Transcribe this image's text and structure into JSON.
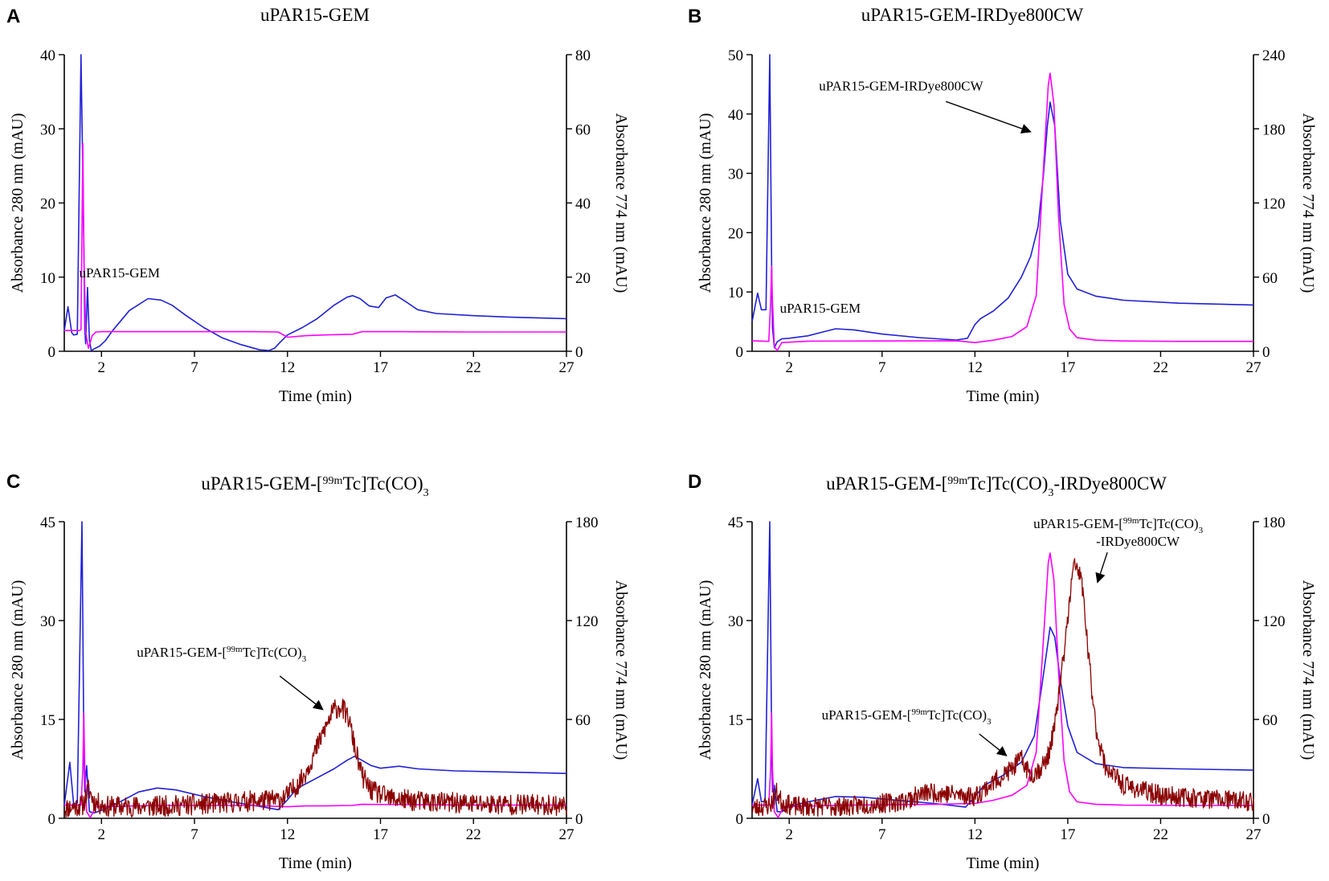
{
  "chart_data": [
    {
      "id": "A",
      "type": "line",
      "panel_letter": "A",
      "title": "uPAR15-GEM",
      "xlabel": "Time (min)",
      "ylabel": "Absorbance 280 nm (mAU)",
      "y2label": "Absorbance 774 nm (mAU)",
      "xlim": [
        0,
        27
      ],
      "xticks": [
        2,
        7,
        12,
        17,
        22,
        27
      ],
      "ylim": [
        0,
        40
      ],
      "yticks": [
        0,
        10,
        20,
        30,
        40
      ],
      "y2lim": [
        0,
        80
      ],
      "y2ticks": [
        0,
        20,
        40,
        60,
        80
      ],
      "series": [
        {
          "name": "280 nm",
          "axis": "left",
          "color": "#2020d8",
          "x": [
            0,
            0.2,
            0.4,
            0.5,
            0.7,
            0.9,
            1.05,
            1.1,
            1.15,
            1.25,
            1.35,
            1.45,
            1.6,
            1.9,
            2.2,
            2.6,
            3.5,
            4.5,
            5.2,
            5.8,
            6.5,
            7.5,
            8.5,
            9.5,
            10.5,
            11.0,
            11.3,
            11.6,
            12.0,
            12.8,
            13.6,
            14.5,
            15.2,
            15.5,
            15.9,
            16.4,
            16.9,
            17.3,
            17.8,
            18.3,
            19,
            20,
            22,
            24,
            27
          ],
          "y": [
            2.8,
            6,
            2.5,
            2.2,
            2.3,
            40,
            15,
            3,
            1,
            8.6,
            1.5,
            0.1,
            0.3,
            0.7,
            1.4,
            2.8,
            5.5,
            7.1,
            6.9,
            6.2,
            4.9,
            3.2,
            1.8,
            0.9,
            0.2,
            0.1,
            0.4,
            1.2,
            2.2,
            3.2,
            4.4,
            6.2,
            7.3,
            7.5,
            7.1,
            6.1,
            5.9,
            7.2,
            7.6,
            6.8,
            5.6,
            5.1,
            4.8,
            4.6,
            4.4
          ]
        },
        {
          "name": "774 nm",
          "axis": "right",
          "color": "#ff00ff",
          "x": [
            0,
            0.8,
            0.9,
            1.0,
            1.05,
            1.15,
            1.3,
            1.5,
            1.7,
            2,
            5,
            8,
            10,
            11.5,
            12,
            13,
            14,
            15.5,
            16,
            18,
            22,
            27
          ],
          "y": [
            5.6,
            5.6,
            5.8,
            56,
            28,
            5,
            0.8,
            4.2,
            5.2,
            5.3,
            5.3,
            5.3,
            5.3,
            5.2,
            3.8,
            4.2,
            4.4,
            4.6,
            5.3,
            5.3,
            5.2,
            5.2
          ]
        }
      ],
      "annotations": [
        {
          "text": "uPAR15-GEM",
          "x": 0.8,
          "y": 10,
          "arrow": false
        }
      ]
    },
    {
      "id": "B",
      "type": "line",
      "panel_letter": "B",
      "title": "uPAR15-GEM-IRDye800CW",
      "xlabel": "Time (min)",
      "ylabel": "Absorbance 280 nm (mAU)",
      "y2label": "Absorbance 774 nm (mAU)",
      "xlim": [
        0,
        27
      ],
      "xticks": [
        2,
        7,
        12,
        17,
        22,
        27
      ],
      "ylim": [
        0,
        50
      ],
      "yticks": [
        0,
        10,
        20,
        30,
        40,
        50
      ],
      "y2lim": [
        0,
        240
      ],
      "y2ticks": [
        0,
        60,
        120,
        180,
        240
      ],
      "series": [
        {
          "name": "280 nm",
          "axis": "left",
          "color": "#2020d8",
          "x": [
            0,
            0.3,
            0.5,
            0.75,
            0.95,
            1.05,
            1.1,
            1.2,
            1.35,
            1.6,
            2,
            3,
            4.5,
            5.5,
            7,
            9,
            11,
            11.6,
            12,
            12.3,
            13,
            13.8,
            14.5,
            15,
            15.4,
            15.7,
            15.9,
            16.05,
            16.3,
            16.6,
            17.0,
            17.5,
            18.5,
            20,
            23,
            27
          ],
          "y": [
            5,
            9.8,
            7,
            7,
            50,
            15,
            4,
            0.6,
            1.6,
            2.1,
            2.2,
            2.6,
            3.8,
            3.6,
            2.9,
            2.3,
            1.9,
            2.2,
            4.5,
            5.5,
            6.8,
            9,
            12.5,
            16,
            21,
            30,
            38,
            42,
            38,
            22,
            13,
            10.5,
            9.3,
            8.6,
            8.1,
            7.8
          ]
        },
        {
          "name": "774 nm",
          "axis": "right",
          "color": "#ff00ff",
          "x": [
            0,
            0.9,
            1.0,
            1.05,
            1.1,
            1.2,
            1.35,
            1.6,
            3,
            7,
            11,
            12,
            13,
            14,
            14.8,
            15.3,
            15.7,
            15.95,
            16.05,
            16.25,
            16.5,
            16.8,
            17.1,
            17.5,
            18.5,
            20,
            23,
            27
          ],
          "y": [
            8.5,
            8,
            40,
            69,
            40,
            4,
            0.5,
            7,
            8.2,
            8.3,
            8.5,
            7,
            9,
            12,
            20,
            45,
            150,
            215,
            225,
            200,
            110,
            38,
            18,
            11,
            9,
            8.3,
            8,
            8
          ]
        }
      ],
      "annotations": [
        {
          "text": "uPAR15-GEM-IRDye800CW",
          "x": 3.6,
          "y": 44,
          "arrow": true,
          "arrow_to": [
            15.0,
            37
          ]
        },
        {
          "text": "uPAR15-GEM",
          "x": 1.5,
          "y": 6.5,
          "arrow": false
        }
      ]
    },
    {
      "id": "C",
      "type": "line",
      "panel_letter": "C",
      "title_parts": [
        "uPAR15-GEM-[",
        "99m",
        "Tc]Tc(CO)",
        "3"
      ],
      "xlabel": "Time (min)",
      "ylabel": "Absorbance 280 nm (mAU)",
      "y2label": "Absorbance 774 nm (mAU)",
      "xlim": [
        0,
        27
      ],
      "xticks": [
        2,
        7,
        12,
        17,
        22,
        27
      ],
      "ylim": [
        0,
        45
      ],
      "yticks": [
        0,
        15,
        30,
        45
      ],
      "y2lim": [
        0,
        180
      ],
      "y2ticks": [
        0,
        60,
        120,
        180
      ],
      "series": [
        {
          "name": "280 nm",
          "axis": "left",
          "color": "#2020d8",
          "x": [
            0,
            0.3,
            0.5,
            0.7,
            0.95,
            1.05,
            1.1,
            1.2,
            1.35,
            1.6,
            2,
            3,
            4,
            5,
            6,
            7.5,
            9,
            10.5,
            11.5,
            12,
            12.5,
            13.5,
            14.5,
            15.2,
            15.6,
            16,
            16.5,
            17,
            18,
            19,
            21,
            24,
            27
          ],
          "y": [
            2,
            8.5,
            2.2,
            2.3,
            45,
            12,
            4,
            8,
            1,
            0.8,
            1.2,
            2.5,
            4,
            4.6,
            4.3,
            3.3,
            2.5,
            1.8,
            1.3,
            2.8,
            4.5,
            6,
            7.5,
            8.8,
            9.4,
            8.8,
            8,
            7.6,
            7.9,
            7.5,
            7.2,
            7,
            6.8
          ]
        },
        {
          "name": "774 nm",
          "axis": "right",
          "color": "#ff00ff",
          "x": [
            0,
            0.9,
            1.0,
            1.05,
            1.1,
            1.2,
            1.4,
            1.7,
            5,
            10,
            12,
            13,
            14,
            15.5,
            16,
            18,
            22,
            27
          ],
          "y": [
            8,
            8,
            30,
            64,
            30,
            4,
            0.5,
            7,
            7.8,
            7.8,
            7,
            7.5,
            7.5,
            7.8,
            8.5,
            8.3,
            8,
            8
          ]
        },
        {
          "name": "radio",
          "axis": "left",
          "color": "#8b0000",
          "noisy": true,
          "noise": 1.6,
          "seed": 11,
          "x": [
            0,
            1.0,
            1.3,
            1.6,
            2.2,
            5,
            8,
            10,
            11.5,
            12,
            12.8,
            13.4,
            14.0,
            14.5,
            14.9,
            15.3,
            15.6,
            16.0,
            16.5,
            17.5,
            19,
            22,
            27
          ],
          "y": [
            1.5,
            2,
            4.5,
            2.5,
            1.8,
            1.8,
            2.2,
            2.6,
            2.8,
            3.5,
            6,
            9.5,
            13.5,
            16.5,
            17,
            15,
            11,
            6.5,
            4.2,
            3,
            2.6,
            2.2,
            2
          ]
        }
      ],
      "annotations": [
        {
          "text_parts": [
            "uPAR15-GEM-[",
            "99m",
            "Tc]Tc(CO)",
            "3"
          ],
          "x": 3.9,
          "y": 24.5,
          "arrow": true,
          "arrow_to": [
            13.9,
            16.5
          ]
        }
      ]
    },
    {
      "id": "D",
      "type": "line",
      "panel_letter": "D",
      "title_parts": [
        "uPAR15-GEM-[",
        "99m",
        "Tc]Tc(CO)",
        "3",
        "-IRDye800CW"
      ],
      "xlabel": "Time (min)",
      "ylabel": "Absorbance 280 nm (mAU)",
      "y2label": "Absorbance 774 nm (mAU)",
      "xlim": [
        0,
        27
      ],
      "xticks": [
        2,
        7,
        12,
        17,
        22,
        27
      ],
      "ylim": [
        0,
        45
      ],
      "yticks": [
        0,
        15,
        30,
        45
      ],
      "y2lim": [
        0,
        180
      ],
      "y2ticks": [
        0,
        60,
        120,
        180
      ],
      "series": [
        {
          "name": "280 nm",
          "axis": "left",
          "color": "#2020d8",
          "x": [
            0,
            0.3,
            0.5,
            0.7,
            0.95,
            1.05,
            1.1,
            1.2,
            1.35,
            1.6,
            2,
            3,
            4.5,
            6,
            8,
            10,
            11.5,
            12,
            12.5,
            13.5,
            14.5,
            15.2,
            15.6,
            15.9,
            16.05,
            16.3,
            16.6,
            17.0,
            17.5,
            18.5,
            20,
            23,
            27
          ],
          "y": [
            2,
            6,
            2.5,
            2.6,
            45,
            12,
            4,
            5,
            1,
            1,
            1.8,
            2.5,
            3.3,
            3.2,
            2.7,
            2.2,
            1.7,
            3.3,
            5,
            6.5,
            8.5,
            12.5,
            20,
            26,
            29,
            27.5,
            21,
            14,
            10,
            8.3,
            7.7,
            7.5,
            7.3
          ]
        },
        {
          "name": "774 nm",
          "axis": "right",
          "color": "#ff00ff",
          "x": [
            0,
            0.9,
            1.0,
            1.05,
            1.1,
            1.2,
            1.4,
            1.7,
            5,
            10,
            12,
            13,
            14,
            14.8,
            15.3,
            15.7,
            15.95,
            16.05,
            16.25,
            16.5,
            16.8,
            17.1,
            17.5,
            18.5,
            20,
            23,
            27
          ],
          "y": [
            8,
            8,
            30,
            64,
            30,
            4,
            0.5,
            7,
            8,
            8.5,
            9,
            11,
            14,
            20,
            40,
            110,
            155,
            161,
            145,
            90,
            35,
            16,
            10,
            8.5,
            8,
            7.8,
            7.8
          ]
        },
        {
          "name": "radio",
          "axis": "left",
          "color": "#8b0000",
          "noisy": true,
          "noise": 1.5,
          "seed": 23,
          "x": [
            0,
            1.0,
            1.3,
            1.6,
            2.2,
            5,
            8,
            9.5,
            11.5,
            12,
            13,
            14,
            14.5,
            15,
            15.5,
            15.9,
            16.3,
            16.8,
            17.1,
            17.3,
            17.5,
            17.8,
            18.1,
            18.5,
            19,
            20,
            22,
            27
          ],
          "y": [
            1.5,
            2,
            4,
            2.5,
            1.8,
            1.8,
            2.5,
            4,
            3.5,
            3.3,
            5.5,
            7.5,
            9,
            6.5,
            7.5,
            9,
            14,
            25,
            33,
            38,
            38.5,
            35,
            25,
            14,
            8,
            5,
            3.5,
            2.5
          ]
        }
      ],
      "annotations": [
        {
          "text_parts": [
            "uPAR15-GEM-[",
            "99m",
            "Tc]Tc(CO)",
            "3"
          ],
          "text_line2": "-IRDye800CW",
          "x": 15.15,
          "y": 44,
          "arrow": true,
          "arrow_to": [
            18.6,
            35.8
          ]
        },
        {
          "text_parts": [
            "uPAR15-GEM-[",
            "99m",
            "Tc]Tc(CO)",
            "3"
          ],
          "x": 3.75,
          "y": 15,
          "arrow": true,
          "arrow_to": [
            13.7,
            9.5
          ]
        }
      ]
    }
  ]
}
